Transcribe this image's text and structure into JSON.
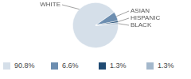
{
  "chart_data": {
    "type": "pie",
    "categories": [
      "WHITE",
      "ASIAN",
      "HISPANIC",
      "BLACK"
    ],
    "values": [
      90.8,
      6.6,
      1.3,
      1.3
    ],
    "value_labels": [
      "90.8%",
      "6.6%",
      "1.3%",
      "1.3%"
    ],
    "colors": [
      "#d5dfe9",
      "#6d8eb0",
      "#1f4a72",
      "#a4b8cc"
    ],
    "legend": "bottom"
  }
}
